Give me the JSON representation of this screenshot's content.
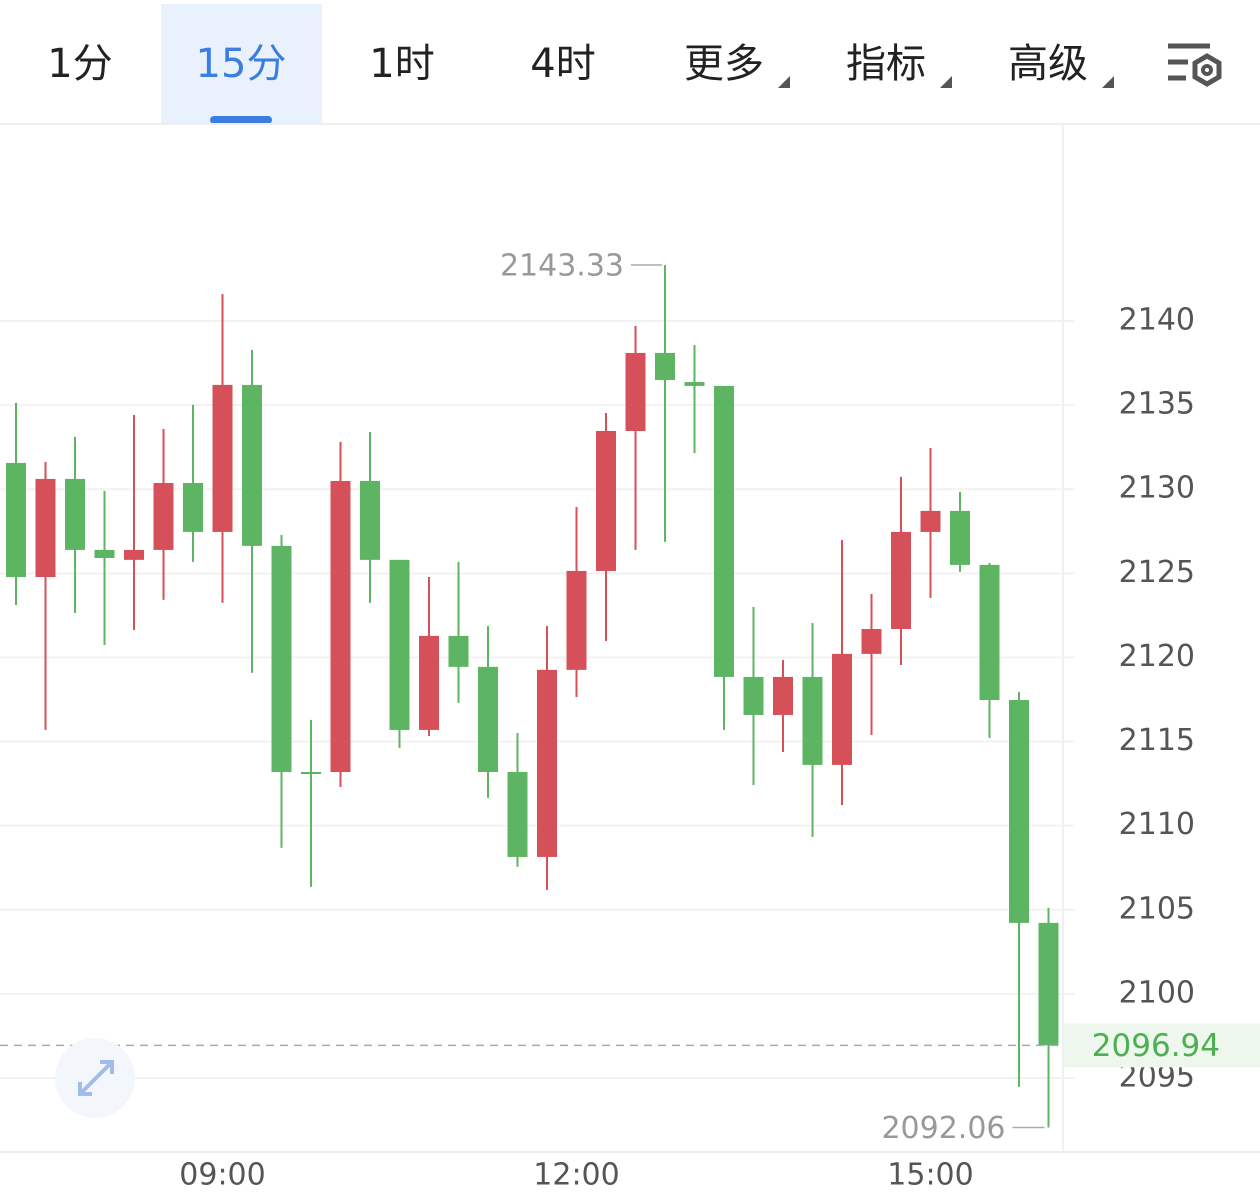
{
  "tabs": [
    "1分",
    "15分",
    "1时",
    "4时",
    "更多",
    "指标",
    "高级"
  ],
  "selected_tab": 1,
  "tab_has_menu": [
    false,
    false,
    false,
    false,
    true,
    true,
    true
  ],
  "chart_data": {
    "type": "candlestick",
    "categories": [
      null,
      null,
      null,
      null,
      null,
      null,
      null,
      "09:00",
      null,
      null,
      null,
      null,
      null,
      null,
      null,
      null,
      null,
      null,
      null,
      "12:00",
      null,
      null,
      null,
      null,
      null,
      null,
      null,
      null,
      null,
      null,
      null,
      "15:00",
      null,
      null,
      null,
      null
    ],
    "open": [
      2131.56,
      2124.78,
      2130.61,
      2126.39,
      2125.8,
      2126.39,
      2130.37,
      2127.46,
      2136.2,
      2126.63,
      2113.19,
      2113.19,
      2130.49,
      2125.8,
      2115.69,
      2121.28,
      2119.44,
      2113.19,
      2108.14,
      2119.26,
      2125.14,
      2133.46,
      2138.1,
      2136.37,
      2136.14,
      2118.84,
      2116.58,
      2118.84,
      2113.61,
      2120.21,
      2121.69,
      2127.46,
      2128.71,
      2125.5,
      2117.47,
      2104.22
    ],
    "high": [
      2135.13,
      2131.62,
      2133.11,
      2129.9,
      2134.41,
      2133.58,
      2135.01,
      2141.6,
      2138.28,
      2127.28,
      2116.29,
      2132.81,
      2133.4,
      2125.8,
      2124.78,
      2125.68,
      2121.87,
      2115.51,
      2121.87,
      2128.94,
      2134.53,
      2139.7,
      2143.33,
      2138.57,
      2136.14,
      2123.0,
      2119.85,
      2122.05,
      2126.98,
      2123.77,
      2130.73,
      2132.45,
      2129.84,
      2125.62,
      2117.95,
      2105.11
    ],
    "low": [
      2123.12,
      2115.69,
      2122.64,
      2120.74,
      2121.63,
      2123.42,
      2125.68,
      2123.24,
      2119.08,
      2108.68,
      2106.36,
      2112.3,
      2123.24,
      2114.62,
      2115.33,
      2117.3,
      2111.65,
      2107.55,
      2106.18,
      2117.65,
      2120.98,
      2126.39,
      2126.87,
      2132.15,
      2115.69,
      2112.42,
      2114.38,
      2109.33,
      2111.23,
      2115.39,
      2119.55,
      2123.54,
      2125.08,
      2115.21,
      2094.47,
      2092.06
    ],
    "close": [
      2124.78,
      2130.61,
      2126.39,
      2125.91,
      2126.39,
      2130.37,
      2127.46,
      2136.2,
      2126.63,
      2113.19,
      2113.13,
      2130.49,
      2125.8,
      2115.69,
      2121.28,
      2119.44,
      2113.19,
      2108.14,
      2119.26,
      2125.14,
      2133.46,
      2138.1,
      2136.49,
      2136.14,
      2118.84,
      2116.58,
      2118.84,
      2113.61,
      2120.21,
      2121.69,
      2127.46,
      2128.71,
      2125.5,
      2117.47,
      2104.22,
      2096.94
    ],
    "up_color": "#d6505a",
    "down_color": "#5db462",
    "ylim": [
      2090.6,
      2151.65
    ],
    "yticks": [
      2095,
      2100,
      2105,
      2110,
      2115,
      2120,
      2125,
      2130,
      2135,
      2140
    ],
    "grid": true,
    "max_marker": 22,
    "min_marker": 35
  }
}
